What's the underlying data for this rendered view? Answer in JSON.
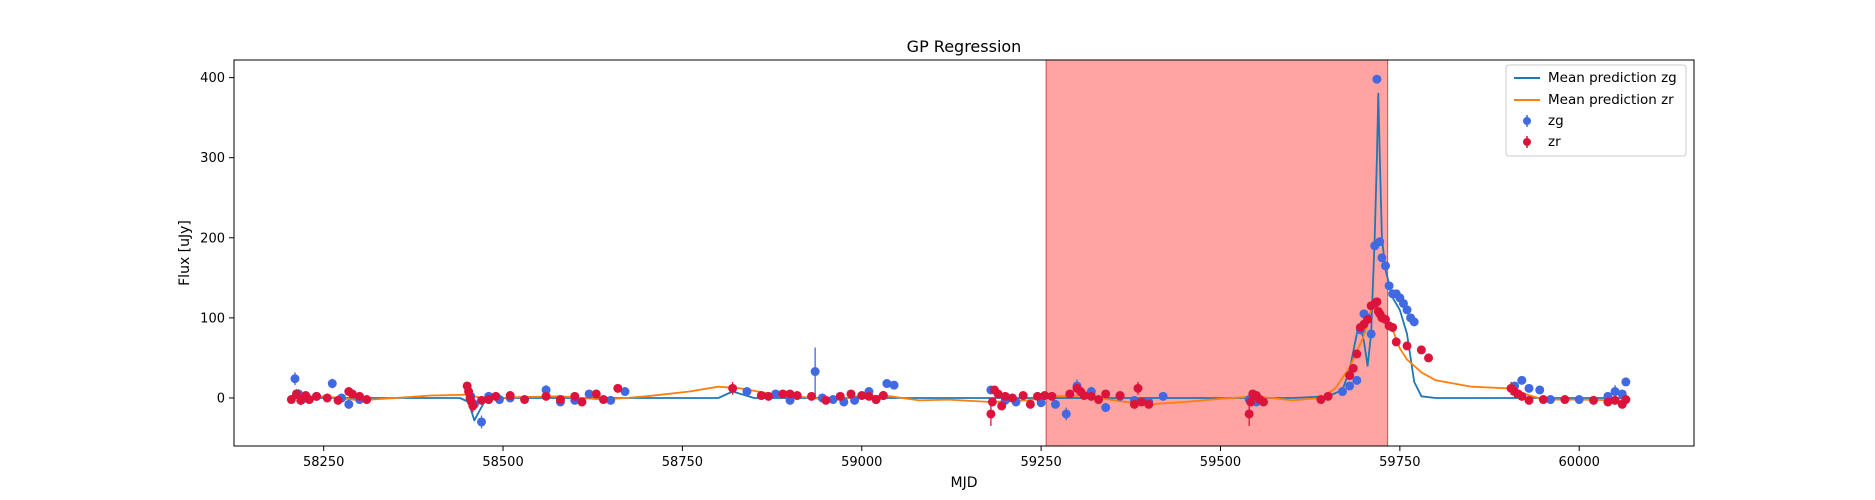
{
  "chart_data": {
    "type": "scatter",
    "title": "GP Regression",
    "xlabel": "MJD",
    "ylabel": "Flux [uJy]",
    "xlim": [
      58125,
      60160
    ],
    "ylim": [
      -60,
      422
    ],
    "xticks": [
      58250,
      58500,
      58750,
      59000,
      59250,
      59500,
      59750,
      60000
    ],
    "yticks": [
      0,
      100,
      200,
      300,
      400
    ],
    "legend_position": "top-right",
    "shaded_region": {
      "x0": 59257,
      "x1": 59733,
      "color": "#ff6666"
    },
    "colors": {
      "zg_line": "#1f77b4",
      "zr_line": "#ff7f0e",
      "zg_points": "#4169e1",
      "zr_points": "#dc143c"
    },
    "series": [
      {
        "name": "Mean prediction zg",
        "kind": "line",
        "color": "#1f77b4",
        "x": [
          58200,
          58250,
          58300,
          58400,
          58440,
          58452,
          58460,
          58475,
          58490,
          58530,
          58600,
          58700,
          58800,
          58820,
          58850,
          59000,
          59100,
          59200,
          59250,
          59300,
          59400,
          59500,
          59600,
          59650,
          59670,
          59680,
          59690,
          59695,
          59700,
          59705,
          59710,
          59715,
          59718,
          59720,
          59722,
          59725,
          59730,
          59740,
          59750,
          59760,
          59770,
          59780,
          59800,
          59850,
          59900,
          60000,
          60060
        ],
        "y": [
          0,
          0,
          0,
          0,
          0,
          -5,
          -28,
          -3,
          0,
          0,
          0,
          0,
          0,
          8,
          0,
          0,
          0,
          0,
          0,
          0,
          0,
          0,
          0,
          2,
          10,
          35,
          80,
          90,
          70,
          40,
          80,
          200,
          300,
          380,
          300,
          200,
          160,
          125,
          110,
          80,
          20,
          2,
          0,
          0,
          0,
          0,
          0
        ]
      },
      {
        "name": "Mean prediction zr",
        "kind": "line",
        "color": "#ff7f0e",
        "x": [
          58200,
          58250,
          58300,
          58400,
          58450,
          58480,
          58520,
          58580,
          58640,
          58700,
          58760,
          58800,
          58830,
          58880,
          58920,
          58960,
          59000,
          59040,
          59080,
          59120,
          59180,
          59230,
          59270,
          59310,
          59360,
          59400,
          59450,
          59500,
          59550,
          59600,
          59640,
          59660,
          59680,
          59700,
          59710,
          59718,
          59728,
          59740,
          59750,
          59760,
          59780,
          59800,
          59850,
          59900,
          59950,
          60000,
          60060
        ],
        "y": [
          0,
          2,
          -3,
          3,
          4,
          -2,
          1,
          2,
          -2,
          2,
          8,
          14,
          12,
          4,
          1,
          -3,
          3,
          2,
          -3,
          -2,
          -5,
          -3,
          2,
          3,
          -4,
          -8,
          -5,
          -1,
          2,
          -3,
          0,
          12,
          38,
          78,
          110,
          115,
          105,
          85,
          62,
          48,
          32,
          22,
          14,
          12,
          -2,
          -2,
          -3
        ]
      },
      {
        "name": "zg",
        "kind": "scatter",
        "color": "#4169e1",
        "x": [
          58210,
          58215,
          58220,
          58240,
          58262,
          58275,
          58285,
          58300,
          58455,
          58460,
          58470,
          58480,
          58495,
          58510,
          58560,
          58580,
          58600,
          58620,
          58650,
          58670,
          58840,
          58880,
          58900,
          58935,
          58945,
          58960,
          58975,
          58990,
          59010,
          59020,
          59030,
          59035,
          59045,
          59180,
          59200,
          59215,
          59250,
          59270,
          59285,
          59300,
          59320,
          59340,
          59360,
          59380,
          59400,
          59420,
          59540,
          59550,
          59670,
          59680,
          59690,
          59695,
          59700,
          59705,
          59710,
          59715,
          59718,
          59722,
          59725,
          59730,
          59735,
          59740,
          59745,
          59750,
          59755,
          59760,
          59765,
          59770,
          59910,
          59920,
          59930,
          59945,
          59960,
          60000,
          60040,
          60050,
          60060,
          60065
        ],
        "y": [
          24,
          5,
          -2,
          2,
          18,
          0,
          -8,
          -2,
          2,
          -8,
          -30,
          2,
          -2,
          0,
          10,
          -5,
          -3,
          5,
          -3,
          8,
          8,
          5,
          -3,
          33,
          0,
          -2,
          -5,
          -3,
          8,
          -2,
          3,
          18,
          16,
          10,
          -3,
          -5,
          -6,
          -8,
          -20,
          15,
          8,
          -12,
          2,
          -3,
          -5,
          2,
          -2,
          -5,
          8,
          15,
          22,
          85,
          105,
          100,
          80,
          190,
          398,
          195,
          175,
          165,
          140,
          130,
          130,
          125,
          118,
          110,
          100,
          95,
          15,
          22,
          12,
          10,
          -2,
          -2,
          2,
          8,
          5,
          20
        ],
        "err": [
          8,
          6,
          5,
          5,
          6,
          5,
          5,
          5,
          5,
          5,
          8,
          5,
          5,
          5,
          6,
          5,
          5,
          5,
          5,
          5,
          5,
          5,
          5,
          30,
          5,
          5,
          5,
          5,
          5,
          5,
          5,
          5,
          5,
          5,
          5,
          5,
          5,
          5,
          8,
          8,
          6,
          5,
          5,
          5,
          5,
          5,
          5,
          5,
          5,
          5,
          5,
          5,
          5,
          5,
          5,
          5,
          5,
          5,
          5,
          5,
          5,
          5,
          5,
          5,
          5,
          5,
          5,
          5,
          5,
          5,
          5,
          5,
          5,
          5,
          5,
          8,
          5,
          5
        ]
      },
      {
        "name": "zr",
        "kind": "scatter",
        "color": "#dc143c",
        "x": [
          58205,
          58212,
          58218,
          58225,
          58230,
          58240,
          58255,
          58270,
          58285,
          58290,
          58300,
          58310,
          58450,
          58452,
          58454,
          58456,
          58458,
          58470,
          58480,
          58490,
          58510,
          58530,
          58560,
          58580,
          58600,
          58610,
          58630,
          58640,
          58660,
          58820,
          58860,
          58870,
          58890,
          58900,
          58910,
          58930,
          58950,
          58970,
          58985,
          59000,
          59010,
          59020,
          59030,
          59180,
          59182,
          59185,
          59190,
          59195,
          59200,
          59210,
          59225,
          59235,
          59245,
          59255,
          59265,
          59290,
          59300,
          59305,
          59310,
          59320,
          59330,
          59340,
          59360,
          59380,
          59385,
          59390,
          59400,
          59540,
          59542,
          59545,
          59550,
          59555,
          59560,
          59640,
          59650,
          59680,
          59685,
          59690,
          59695,
          59700,
          59705,
          59710,
          59715,
          59718,
          59720,
          59722,
          59725,
          59730,
          59735,
          59740,
          59745,
          59760,
          59780,
          59790,
          59905,
          59910,
          59915,
          59920,
          59930,
          59950,
          59980,
          60020,
          60040,
          60050,
          60060,
          60065
        ],
        "y": [
          -2,
          5,
          -3,
          3,
          -2,
          2,
          0,
          -3,
          8,
          5,
          2,
          -2,
          15,
          8,
          0,
          -5,
          -10,
          -3,
          -2,
          2,
          3,
          -2,
          2,
          -2,
          2,
          -5,
          5,
          -2,
          12,
          12,
          3,
          2,
          5,
          5,
          3,
          2,
          -3,
          2,
          5,
          3,
          2,
          -2,
          3,
          -20,
          -5,
          10,
          5,
          -10,
          2,
          0,
          3,
          -8,
          2,
          3,
          2,
          5,
          12,
          8,
          3,
          2,
          -2,
          5,
          3,
          -8,
          12,
          -5,
          -8,
          -20,
          -5,
          5,
          3,
          -2,
          -5,
          -2,
          2,
          28,
          37,
          55,
          88,
          92,
          98,
          115,
          118,
          120,
          108,
          105,
          100,
          98,
          90,
          88,
          70,
          65,
          60,
          50,
          12,
          8,
          5,
          2,
          -3,
          -2,
          -2,
          -3,
          -5,
          -3,
          -8,
          -2
        ],
        "err": [
          5,
          6,
          6,
          5,
          5,
          5,
          5,
          5,
          5,
          5,
          5,
          5,
          5,
          5,
          5,
          5,
          8,
          5,
          5,
          5,
          5,
          5,
          5,
          5,
          5,
          5,
          5,
          5,
          5,
          8,
          5,
          5,
          5,
          5,
          5,
          5,
          5,
          5,
          5,
          5,
          5,
          5,
          5,
          15,
          5,
          5,
          5,
          5,
          5,
          5,
          5,
          5,
          5,
          5,
          5,
          5,
          5,
          5,
          5,
          5,
          5,
          5,
          5,
          5,
          8,
          5,
          5,
          15,
          5,
          5,
          5,
          5,
          5,
          5,
          5,
          5,
          5,
          5,
          5,
          5,
          5,
          5,
          5,
          5,
          5,
          5,
          5,
          5,
          5,
          5,
          5,
          5,
          5,
          5,
          8,
          8,
          5,
          5,
          5,
          5,
          5,
          5,
          5,
          5,
          5,
          5
        ]
      }
    ]
  }
}
